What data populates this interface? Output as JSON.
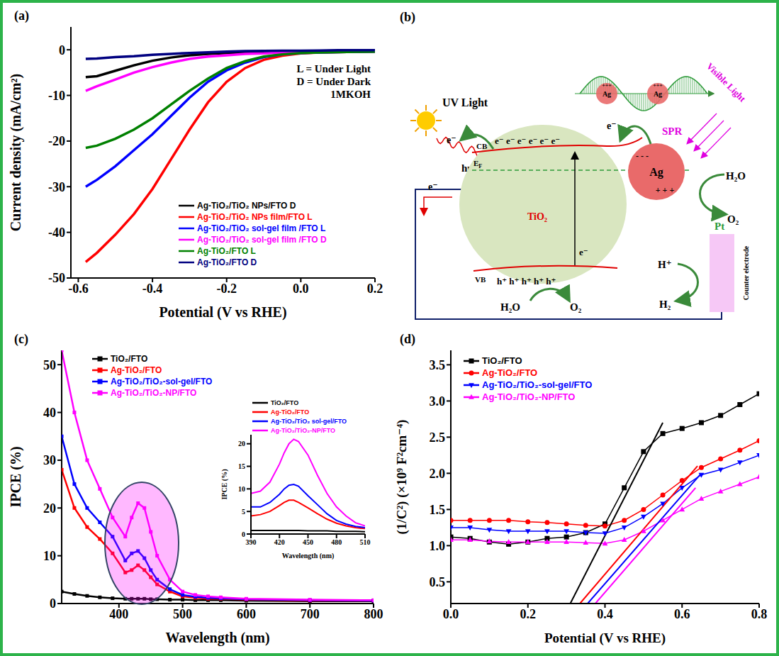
{
  "chart_data": [
    {
      "panel": "(a)",
      "type": "line",
      "x_label": "Potential (V vs RHE)",
      "y_label": "Current density (mA/cm²)",
      "annotations": [
        "L = Under Light",
        "D = Under Dark",
        "1MKOH"
      ],
      "xlim": [
        -0.62,
        0.2
      ],
      "xticks": [
        -0.6,
        -0.4,
        -0.2,
        {
          "value": 0,
          "label": "0.0"
        },
        0.2
      ],
      "ylim": [
        -50,
        5
      ],
      "yticks": [
        -50,
        -40,
        -30,
        -20,
        -10,
        0
      ],
      "legend": "lower right",
      "x": [
        -0.58,
        -0.55,
        -0.5,
        -0.45,
        -0.4,
        -0.35,
        -0.3,
        -0.25,
        -0.2,
        -0.15,
        -0.1,
        -0.05,
        0,
        0.05,
        0.1,
        0.15,
        0.2
      ],
      "series": [
        {
          "name": "Ag-TiO₂/TiO₂ NPs/FTO D",
          "color": "#000000",
          "values": [
            -6,
            -5.8,
            -4.6,
            -3.4,
            -2.4,
            -1.7,
            -1.2,
            -0.9,
            -0.7,
            -0.5,
            -0.4,
            -0.35,
            -0.3,
            -0.3,
            -0.25,
            -0.2,
            -0.2
          ]
        },
        {
          "name": "Ag-TiO₂/TiO₂ NPs film/FTO L",
          "color": "#ff0000",
          "values": [
            -46.5,
            -44.5,
            -40.5,
            -36,
            -30.5,
            -24,
            -17.5,
            -11.5,
            -7,
            -4,
            -2.2,
            -1.3,
            -0.8,
            -0.6,
            -0.5,
            -0.45,
            -0.4
          ]
        },
        {
          "name": "Ag-TiO₂/TiO₂ sol-gel film /FTO L",
          "color": "#0000ff",
          "values": [
            -30,
            -28.5,
            -25.5,
            -22,
            -18.5,
            -14.5,
            -10.5,
            -7,
            -4.5,
            -2.8,
            -1.6,
            -1,
            -0.7,
            -0.6,
            -0.5,
            -0.45,
            -0.4
          ]
        },
        {
          "name": "Ag-TiO₂/TiO₂ sol-gel film /FTO D",
          "color": "#ff00ff",
          "values": [
            -9,
            -8,
            -6.5,
            -5,
            -3.8,
            -2.8,
            -2,
            -1.5,
            -1.2,
            -0.9,
            -0.8,
            -0.6,
            -0.5,
            -0.4,
            -0.35,
            -0.3,
            -0.3
          ]
        },
        {
          "name": "Ag-TiO₂/FTO L",
          "color": "#008000",
          "values": [
            -21.5,
            -21,
            -19.5,
            -17.5,
            -15,
            -12,
            -9,
            -6.3,
            -4,
            -2.5,
            -1.5,
            -1,
            -0.7,
            -0.6,
            -0.5,
            -0.45,
            -0.4
          ]
        },
        {
          "name": "Ag-TiO₂/FTO D",
          "color": "#000080",
          "values": [
            -2,
            -1.9,
            -1.6,
            -1.4,
            -1.1,
            -0.9,
            -0.7,
            -0.55,
            -0.4,
            -0.3,
            -0.25,
            -0.2,
            -0.2,
            -0.15,
            -0.1,
            -0.1,
            -0.1
          ]
        }
      ]
    },
    {
      "panel": "(c)",
      "type": "line",
      "x_label": "Wavelength (nm)",
      "y_label": "IPCE (%)",
      "xlim": [
        310,
        800
      ],
      "xticks": [
        400,
        500,
        600,
        700,
        800
      ],
      "ylim": [
        0,
        53
      ],
      "yticks": [
        0,
        10,
        20,
        30,
        40,
        50
      ],
      "legend": "upper left",
      "x": [
        310,
        330,
        350,
        370,
        390,
        410,
        420,
        430,
        440,
        450,
        460,
        480,
        500,
        520,
        540,
        560,
        600,
        700,
        800
      ],
      "series": [
        {
          "name": "TiO₂/FTO",
          "color": "#000000",
          "marker": "square",
          "values": [
            2.5,
            2,
            1.6,
            1.3,
            1.1,
            1,
            1,
            1,
            1,
            0.9,
            0.9,
            0.8,
            0.8,
            0.7,
            0.7,
            0.7,
            0.6,
            0.5,
            0.5
          ]
        },
        {
          "name": "Ag-TiO₂/FTO",
          "color": "#ff0000",
          "marker": "square",
          "values": [
            28,
            20,
            16,
            13.5,
            10.5,
            6.5,
            7,
            8,
            7,
            5.5,
            4,
            2.5,
            1.5,
            1.2,
            1,
            1,
            0.8,
            0.6,
            0.6
          ]
        },
        {
          "name": "Ag-TiO₂/TiO₂-sol-gel/FTO",
          "color": "#0000ff",
          "marker": "square",
          "values": [
            35,
            25,
            20,
            17,
            14,
            9,
            10.5,
            11,
            9.5,
            7,
            5,
            3,
            1.8,
            1.4,
            1.2,
            1.1,
            0.9,
            0.7,
            0.6
          ]
        },
        {
          "name": "Ag-TiO₂/TiO₂-NP/FTO",
          "color": "#ff00ff",
          "marker": "square",
          "values": [
            53,
            40,
            30,
            24,
            18,
            14,
            18,
            21,
            20,
            15,
            10,
            5,
            2.5,
            1.8,
            1.5,
            1.3,
            1,
            0.8,
            0.7
          ]
        }
      ],
      "inset": {
        "type": "line",
        "x_label": "Wavelength (nm)",
        "y_label": "IPCE (%)",
        "xlim": [
          390,
          510
        ],
        "xticks": [
          390,
          420,
          450,
          480,
          510
        ],
        "ylim": [
          0,
          22
        ],
        "yticks": [
          0,
          5,
          10,
          15,
          20
        ],
        "legend": "upper left",
        "x": [
          390,
          400,
          410,
          420,
          425,
          430,
          435,
          440,
          450,
          460,
          470,
          480,
          490,
          500,
          510
        ],
        "series": [
          {
            "name": "TiO₂/FTO",
            "color": "#000000",
            "values": [
              0.8,
              0.8,
              0.8,
              0.8,
              0.8,
              0.8,
              0.8,
              0.8,
              0.7,
              0.7,
              0.7,
              0.6,
              0.6,
              0.6,
              0.5
            ]
          },
          {
            "name": "Ag-TiO₂/FTO",
            "color": "#ff0000",
            "values": [
              4,
              4.3,
              5,
              6.3,
              7,
              7.5,
              7.5,
              7,
              5.8,
              4.5,
              3.3,
              2.4,
              1.8,
              1.4,
              1.2
            ]
          },
          {
            "name": "Ag-TiO₂/TiO₂ sol-gel/FTO",
            "color": "#0000ff",
            "values": [
              6,
              6,
              7,
              8.8,
              10,
              10.8,
              11,
              10.6,
              8.5,
              6.5,
              4.5,
              3,
              2.2,
              1.7,
              1.4
            ]
          },
          {
            "name": "Ag-TiO₂/TiO₂-NP/FTO",
            "color": "#ff00ff",
            "values": [
              9,
              9.5,
              11.5,
              15.5,
              18,
              20,
              21,
              20.5,
              17.5,
              13,
              9,
              6,
              4,
              2.5,
              1.8
            ]
          }
        ]
      }
    },
    {
      "panel": "(d)",
      "type": "line",
      "x_label": "Potential (V vs RHE)",
      "y_label": "(1/C²) (×10⁹ F²cm⁻⁴)",
      "xlim": [
        0,
        0.8
      ],
      "xticks": [
        {
          "value": 0,
          "label": "0.0"
        },
        0.2,
        0.4,
        0.6,
        0.8
      ],
      "ylim": [
        0.2,
        3.7
      ],
      "yticks": [
        0.5,
        {
          "value": 1,
          "label": "1.0"
        },
        1.5,
        {
          "value": 2,
          "label": "2.0"
        },
        2.5,
        {
          "value": 3,
          "label": "3.0"
        },
        3.5
      ],
      "legend": "upper left",
      "x": [
        0,
        0.05,
        0.1,
        0.15,
        0.2,
        0.25,
        0.3,
        0.35,
        0.4,
        0.45,
        0.5,
        0.55,
        0.6,
        0.65,
        0.7,
        0.75,
        0.8
      ],
      "series": [
        {
          "name": "TiO₂/FTO",
          "color": "#000000",
          "marker": "square",
          "values": [
            1.12,
            1.1,
            1.05,
            1.02,
            1.05,
            1.1,
            1.12,
            1.18,
            1.3,
            1.8,
            2.3,
            2.55,
            2.62,
            2.7,
            2.8,
            2.95,
            3.1
          ],
          "fit": {
            "x": [
              0.31,
              0.55
            ],
            "y": [
              0.2,
              2.7
            ]
          }
        },
        {
          "name": "Ag-TiO₂/FTO",
          "color": "#ff0000",
          "marker": "circle",
          "values": [
            1.35,
            1.35,
            1.35,
            1.35,
            1.33,
            1.32,
            1.3,
            1.28,
            1.27,
            1.35,
            1.5,
            1.7,
            1.9,
            2.08,
            2.2,
            2.32,
            2.45
          ],
          "fit": {
            "x": [
              0.335,
              0.64
            ],
            "y": [
              0.2,
              2.1
            ]
          }
        },
        {
          "name": "Ag-TiO₂/TiO₂-sol-gel/FTO",
          "color": "#0000ff",
          "marker": "triangle-down",
          "values": [
            1.25,
            1.25,
            1.22,
            1.2,
            1.2,
            1.2,
            1.2,
            1.18,
            1.17,
            1.25,
            1.4,
            1.58,
            1.8,
            1.98,
            2.05,
            2.15,
            2.25
          ],
          "fit": {
            "x": [
              0.355,
              0.65
            ],
            "y": [
              0.2,
              2
            ]
          }
        },
        {
          "name": "Ag-TiO₂/TiO₂-NP/FTO",
          "color": "#ff00ff",
          "marker": "triangle-up",
          "values": [
            1.08,
            1.08,
            1.06,
            1.05,
            1.05,
            1.05,
            1.05,
            1.04,
            1.03,
            1.08,
            1.2,
            1.35,
            1.5,
            1.65,
            1.75,
            1.85,
            1.95
          ],
          "fit": {
            "x": [
              0.375,
              0.635
            ],
            "y": [
              0.2,
              1.8
            ]
          }
        }
      ]
    }
  ],
  "diagram": {
    "panel": "(b)",
    "labels": {
      "uv_light": "UV Light",
      "photon": "hυ",
      "cb": "CB",
      "fermi": {
        "text": "E",
        "sub": "F"
      },
      "vb": "VB",
      "semiconductor": "TiO₂",
      "electrons": "e⁻ e⁻ e⁻ e⁻ e⁻ e⁻",
      "holes": "h⁺ h⁺ h⁺ h⁺ h⁺",
      "e_excited": "e⁻",
      "e_out": "e⁻",
      "e_from_ag": "e⁻",
      "e_circuit": "e⁻",
      "metal": "Ag",
      "metal_minus": "- - -",
      "metal_plus": "+ + +",
      "spr": "SPR",
      "spr_particles": [
        "Ag",
        "Ag"
      ],
      "spr_charges": [
        "+++",
        "+++"
      ],
      "visible_light": "Visible Light",
      "water_ag": "H₂O",
      "oxygen_ag": "O₂",
      "water_vb": "H₂O",
      "oxygen_vb": "O₂",
      "proton": "H⁺",
      "hydrogen": "H₂",
      "counter_metal": "Pt",
      "counter_label": "Counter electrode"
    }
  }
}
